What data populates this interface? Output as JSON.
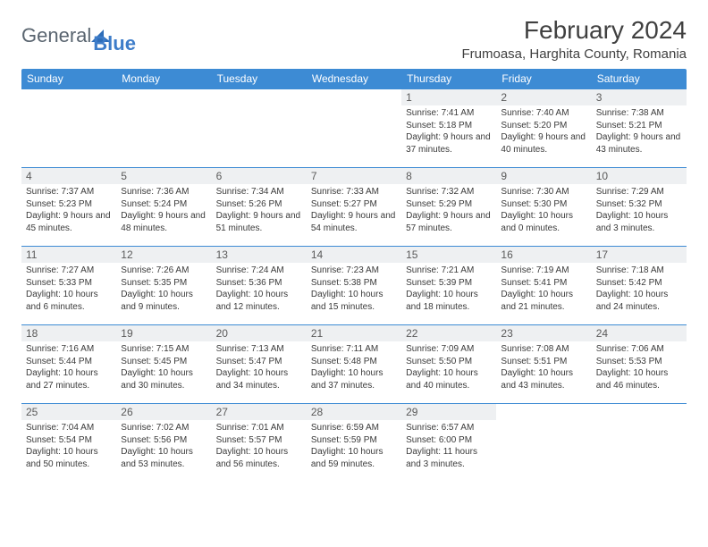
{
  "logo": {
    "text1": "General",
    "text2": "Blue"
  },
  "title": "February 2024",
  "location": "Frumoasa, Harghita County, Romania",
  "day_headers": [
    "Sunday",
    "Monday",
    "Tuesday",
    "Wednesday",
    "Thursday",
    "Friday",
    "Saturday"
  ],
  "header_bg": "#3d8bd4",
  "header_fg": "#ffffff",
  "border_color": "#3d8bd4",
  "daynum_bg": "#eef0f2",
  "text_color": "#3a3a3a",
  "weeks": [
    [
      null,
      null,
      null,
      null,
      {
        "n": "1",
        "sr": "7:41 AM",
        "ss": "5:18 PM",
        "dl": "9 hours and 37 minutes."
      },
      {
        "n": "2",
        "sr": "7:40 AM",
        "ss": "5:20 PM",
        "dl": "9 hours and 40 minutes."
      },
      {
        "n": "3",
        "sr": "7:38 AM",
        "ss": "5:21 PM",
        "dl": "9 hours and 43 minutes."
      }
    ],
    [
      {
        "n": "4",
        "sr": "7:37 AM",
        "ss": "5:23 PM",
        "dl": "9 hours and 45 minutes."
      },
      {
        "n": "5",
        "sr": "7:36 AM",
        "ss": "5:24 PM",
        "dl": "9 hours and 48 minutes."
      },
      {
        "n": "6",
        "sr": "7:34 AM",
        "ss": "5:26 PM",
        "dl": "9 hours and 51 minutes."
      },
      {
        "n": "7",
        "sr": "7:33 AM",
        "ss": "5:27 PM",
        "dl": "9 hours and 54 minutes."
      },
      {
        "n": "8",
        "sr": "7:32 AM",
        "ss": "5:29 PM",
        "dl": "9 hours and 57 minutes."
      },
      {
        "n": "9",
        "sr": "7:30 AM",
        "ss": "5:30 PM",
        "dl": "10 hours and 0 minutes."
      },
      {
        "n": "10",
        "sr": "7:29 AM",
        "ss": "5:32 PM",
        "dl": "10 hours and 3 minutes."
      }
    ],
    [
      {
        "n": "11",
        "sr": "7:27 AM",
        "ss": "5:33 PM",
        "dl": "10 hours and 6 minutes."
      },
      {
        "n": "12",
        "sr": "7:26 AM",
        "ss": "5:35 PM",
        "dl": "10 hours and 9 minutes."
      },
      {
        "n": "13",
        "sr": "7:24 AM",
        "ss": "5:36 PM",
        "dl": "10 hours and 12 minutes."
      },
      {
        "n": "14",
        "sr": "7:23 AM",
        "ss": "5:38 PM",
        "dl": "10 hours and 15 minutes."
      },
      {
        "n": "15",
        "sr": "7:21 AM",
        "ss": "5:39 PM",
        "dl": "10 hours and 18 minutes."
      },
      {
        "n": "16",
        "sr": "7:19 AM",
        "ss": "5:41 PM",
        "dl": "10 hours and 21 minutes."
      },
      {
        "n": "17",
        "sr": "7:18 AM",
        "ss": "5:42 PM",
        "dl": "10 hours and 24 minutes."
      }
    ],
    [
      {
        "n": "18",
        "sr": "7:16 AM",
        "ss": "5:44 PM",
        "dl": "10 hours and 27 minutes."
      },
      {
        "n": "19",
        "sr": "7:15 AM",
        "ss": "5:45 PM",
        "dl": "10 hours and 30 minutes."
      },
      {
        "n": "20",
        "sr": "7:13 AM",
        "ss": "5:47 PM",
        "dl": "10 hours and 34 minutes."
      },
      {
        "n": "21",
        "sr": "7:11 AM",
        "ss": "5:48 PM",
        "dl": "10 hours and 37 minutes."
      },
      {
        "n": "22",
        "sr": "7:09 AM",
        "ss": "5:50 PM",
        "dl": "10 hours and 40 minutes."
      },
      {
        "n": "23",
        "sr": "7:08 AM",
        "ss": "5:51 PM",
        "dl": "10 hours and 43 minutes."
      },
      {
        "n": "24",
        "sr": "7:06 AM",
        "ss": "5:53 PM",
        "dl": "10 hours and 46 minutes."
      }
    ],
    [
      {
        "n": "25",
        "sr": "7:04 AM",
        "ss": "5:54 PM",
        "dl": "10 hours and 50 minutes."
      },
      {
        "n": "26",
        "sr": "7:02 AM",
        "ss": "5:56 PM",
        "dl": "10 hours and 53 minutes."
      },
      {
        "n": "27",
        "sr": "7:01 AM",
        "ss": "5:57 PM",
        "dl": "10 hours and 56 minutes."
      },
      {
        "n": "28",
        "sr": "6:59 AM",
        "ss": "5:59 PM",
        "dl": "10 hours and 59 minutes."
      },
      {
        "n": "29",
        "sr": "6:57 AM",
        "ss": "6:00 PM",
        "dl": "11 hours and 3 minutes."
      },
      null,
      null
    ]
  ],
  "labels": {
    "sunrise": "Sunrise:",
    "sunset": "Sunset:",
    "daylight": "Daylight:"
  }
}
